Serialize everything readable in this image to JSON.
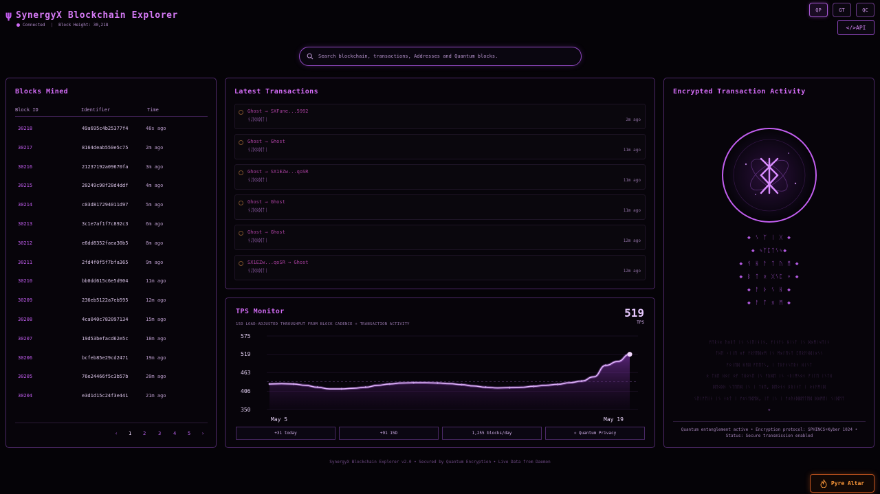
{
  "header": {
    "psi": "ψ",
    "title": "SynergyX Blockchain Explorer",
    "status": "Connected",
    "sep": "|",
    "block_height": "Block Height: 30,218"
  },
  "top_buttons": [
    "QP",
    "GT",
    "QC"
  ],
  "api_label": "</>API",
  "search": {
    "placeholder": "Search blockchain, transactions, Addresses and Quantum blocks."
  },
  "blocks": {
    "title": "Blocks Mined",
    "headers": [
      "Block ID",
      "Identifier",
      "Time"
    ],
    "rows": [
      {
        "id": "30218",
        "ident": "49a695c4b25377f4",
        "time": "48s ago"
      },
      {
        "id": "30217",
        "ident": "8164deab550e5c75",
        "time": "2m ago"
      },
      {
        "id": "30216",
        "ident": "21237192a09670fa",
        "time": "3m ago"
      },
      {
        "id": "30215",
        "ident": "20249c98f28d4ddf",
        "time": "4m ago"
      },
      {
        "id": "30214",
        "ident": "c03d817294011d97",
        "time": "5m ago"
      },
      {
        "id": "30213",
        "ident": "3c1e7af1f7c892c3",
        "time": "6m ago"
      },
      {
        "id": "30212",
        "ident": "e6dd8352faea30b5",
        "time": "8m ago"
      },
      {
        "id": "30211",
        "ident": "2fd4f0f5f7bfa365",
        "time": "9m ago"
      },
      {
        "id": "30210",
        "ident": "bb0dd615c6e5d904",
        "time": "11m ago"
      },
      {
        "id": "30209",
        "ident": "236eb5122a7eb595",
        "time": "12m ago"
      },
      {
        "id": "30208",
        "ident": "4ca040c782097134",
        "time": "15m ago"
      },
      {
        "id": "30207",
        "ident": "19d53befacd62e5c",
        "time": "18m ago"
      },
      {
        "id": "30206",
        "ident": "bcfeb85e29cd2471",
        "time": "19m ago"
      },
      {
        "id": "30205",
        "ident": "76e24466f5c3b57b",
        "time": "20m ago"
      },
      {
        "id": "30204",
        "ident": "e3d1d15c24f3e441",
        "time": "21m ago"
      }
    ],
    "pager": {
      "prev": "‹",
      "pages": [
        "1",
        "2",
        "3",
        "4",
        "5"
      ],
      "next": "›",
      "current": "1"
    }
  },
  "transactions": {
    "title": "Latest Transactions",
    "items": [
      {
        "pair": "Ghost → SXFune...5992",
        "glyph": "ᚾᛇᛞᛟᛞᛏᛁ",
        "ago": "2m ago"
      },
      {
        "pair": "Ghost → Ghost",
        "glyph": "ᚾᛇᛞᛟᛞᛏᛁ",
        "ago": "11m ago"
      },
      {
        "pair": "Ghost → SX1EZw...qoSR",
        "glyph": "ᚾᛇᛞᛟᛞᛏᛁ",
        "ago": "11m ago"
      },
      {
        "pair": "Ghost → Ghost",
        "glyph": "ᚾᛇᛞᛟᛞᛏᛁ",
        "ago": "11m ago"
      },
      {
        "pair": "Ghost → Ghost",
        "glyph": "ᚾᛇᛞᛟᛞᛏᛁ",
        "ago": "12m ago"
      },
      {
        "pair": "SX1EZw...qoSR → Ghost",
        "glyph": "ᚾᛇᛞᛟᛞᛏᛁ",
        "ago": "12m ago"
      }
    ]
  },
  "tps": {
    "title": "TPS Monitor",
    "value": "519",
    "unit": "TPS",
    "subtitle": "15D LOAD-ADJUSTED THROUGHPUT FROM BLOCK CADENCE + TRANSACTION ACTIVITY",
    "stats": [
      "+31 today",
      "+91 15D",
      "1,255 blocks/day",
      "⚛ Quantum Privacy"
    ]
  },
  "chart_data": {
    "type": "area",
    "x_start_label": "May 5",
    "x_end_label": "May 19",
    "y_ticks": [
      "575",
      "519",
      "463",
      "406",
      "350"
    ],
    "ylim": [
      350,
      575
    ],
    "values": [
      428,
      429,
      428,
      424,
      418,
      413,
      413,
      415,
      418,
      424,
      428,
      431,
      432,
      432,
      431,
      429,
      426,
      422,
      418,
      416,
      417,
      418,
      421,
      424,
      427,
      432,
      437,
      450,
      485,
      497,
      519
    ],
    "reference_line": 435
  },
  "encrypted": {
    "title": "Encrypted Transaction Activity",
    "runes": [
      "◆ ᛊ ᛉ ᛁ ᚷ ◆",
      "◆ ᛃᛉᛈᛏᛊᛃ◆",
      "◆ ᛩ ᚺ ᚨ ᛏ ᚢ ᛗ ◆",
      "◆ ᛒ ᛏ ᛟ ᚷᛊᛈ ᛜ ◆",
      "◆ ᚨ ᚦ ᛊ ᚺ ◆",
      "◆ ᚨ ᛏ ᛟ ᛗ ◆"
    ],
    "faint": [
      "ᚠᛖᚱᚾᛟ ᚢᛟᚱᛏ ᛁᛊ ᛊᛁᛖᛁᚾᛁᚾ, ᚠᛁᚾᚨᛊ ᚺᛁᛊᛏ ᛁᛊ ᛞᛟᛗᛁᛃᛖᛁᚾ",
      "ᛏᚺᛖ ᚲᛁᛁᛖ ᛟᚠ ᚠᚱᛖᛖᛞᛟᛗ ᛁᛊ ᛗᛟᛚᛖᛊᛏ ᛈᛖᚱᛖᚾᛞᛁᛟᛊᛊ",
      "ᚠᛟᛁᛖᛞ ᚺᚨᛞ ᚠᛖᛖᛏᛊ, ᛁ ᛏᚱᚨᚾᛊᛖᚱᚾ ᚺᛁᛊᛏ",
      "ᛟ ᛏᚺᛖ ᚺᛟᛚ ᛟᚠ ᛏᚺᛟᛊᛖ ᛁᛊ ᚠᚢᛞᛖ ᛁᛊ ᚲᚱᛁᛗᛊᛟᚾ ᚠᛁᛚᛖ ᛁᛊᛏᚺ",
      "ᛞᛖᛟᛞᚾ ᛊᛏᛖᛖᛞ ᛁᛊ ᛁ ᛏᚺᛖ, ᛞᛖᛟᚾᚾ ᛒᚱᛁᚾᛏ ᛁ ᛟᚾᚨᛗᛁᛞ",
      "ᛊᛖᛁᚠᛖᛁᚾ ᛁᛊ ᚾᛟᛏ ᛁ ᚠᛟᛊᛏᛞᛖᛞ, ᛁᛏ ᛁᛊ ᛁ ᚠᛟᚢᚾᛞᛞᛖᛏᛖᛞ ᛞᛟᛗᛖᛁ ᛊᛁᛞᛖᛏ",
      "◆"
    ],
    "status_line1": "Quantum entanglement active • Encryption protocol: SPHINCS+Kyber 1024 •",
    "status_line2": "Status: Secure transmission enabled"
  },
  "footer": "SynergyX Blockchain Explorer v2.0 • Secured by Quantum Encryption • Live Data from Daemon",
  "pyre": {
    "label": "Pyre Altar"
  },
  "colors": {
    "accent": "#c45cf0",
    "panel_border": "#4d2868",
    "pyre": "#ff9a3a"
  }
}
